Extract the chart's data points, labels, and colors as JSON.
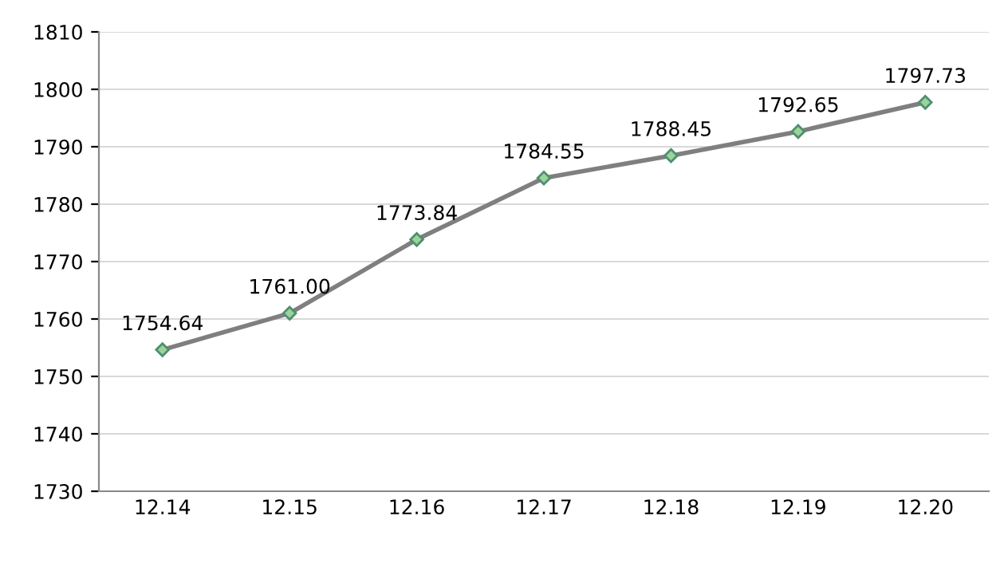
{
  "chart_data": {
    "type": "line",
    "categories": [
      "12.14",
      "12.15",
      "12.16",
      "12.17",
      "12.18",
      "12.19",
      "12.20"
    ],
    "series": [
      {
        "color": "#7f7f7f",
        "values": [
          1754.64,
          1761.0,
          1773.84,
          1784.55,
          1788.45,
          1792.65,
          1797.73
        ],
        "value_labels": [
          "1754.64",
          "1761.00",
          "1773.84",
          "1784.55",
          "1788.45",
          "1792.65",
          "1797.73"
        ]
      }
    ],
    "ylim": [
      1730,
      1810
    ],
    "yticks": [
      1730,
      1740,
      1750,
      1760,
      1770,
      1780,
      1790,
      1800,
      1810
    ],
    "grid": "y",
    "marker": "diamond",
    "line_style": "solid",
    "legend": false
  }
}
